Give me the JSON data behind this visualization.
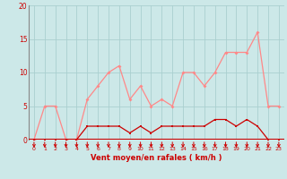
{
  "hours": [
    0,
    1,
    2,
    3,
    4,
    5,
    6,
    7,
    8,
    9,
    10,
    11,
    12,
    13,
    14,
    15,
    16,
    17,
    18,
    19,
    20,
    21,
    22,
    23
  ],
  "wind_avg": [
    0,
    0,
    0,
    0,
    0,
    2,
    2,
    2,
    2,
    1,
    2,
    1,
    2,
    2,
    2,
    2,
    2,
    3,
    3,
    2,
    3,
    2,
    0,
    0
  ],
  "wind_gust": [
    0,
    5,
    5,
    0,
    0,
    6,
    8,
    10,
    11,
    6,
    8,
    5,
    6,
    5,
    10,
    10,
    8,
    10,
    13,
    13,
    13,
    16,
    5,
    5
  ],
  "xlabel": "Vent moyen/en rafales ( km/h )",
  "ylim": [
    0,
    20
  ],
  "xlim": [
    -0.5,
    23.5
  ],
  "yticks": [
    0,
    5,
    10,
    15,
    20
  ],
  "xticks": [
    0,
    1,
    2,
    3,
    4,
    5,
    6,
    7,
    8,
    9,
    10,
    11,
    12,
    13,
    14,
    15,
    16,
    17,
    18,
    19,
    20,
    21,
    22,
    23
  ],
  "bg_color": "#cce8e8",
  "grid_color": "#aacfcf",
  "line_avg_color": "#cc0000",
  "line_gust_color": "#ff8888",
  "tick_label_color": "#cc0000",
  "xlabel_color": "#cc0000",
  "arrow_color": "#cc0000",
  "axis_line_color": "#cc0000",
  "left_spine_color": "#888888"
}
